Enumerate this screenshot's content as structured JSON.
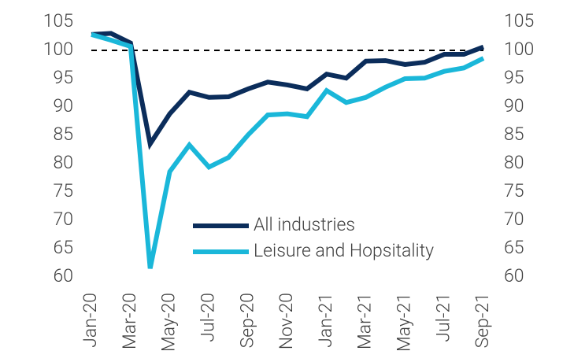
{
  "chart_data": {
    "type": "line",
    "categories": [
      "Jan-20",
      null,
      "Mar-20",
      null,
      "May-20",
      null,
      "Jul-20",
      null,
      "Sep-20",
      null,
      "Nov-20",
      null,
      "Jan-21",
      null,
      "Mar-21",
      null,
      "May-21",
      null,
      "Jul-21",
      null,
      "Sep-21"
    ],
    "series": [
      {
        "name": "All industries",
        "color": "#0b2d5b",
        "values": [
          102.8,
          103,
          101.3,
          83.5,
          88.8,
          92.6,
          91.7,
          91.8,
          93.2,
          94.4,
          93.9,
          93.2,
          95.8,
          95.1,
          98.1,
          98.2,
          97.5,
          97.9,
          99.3,
          99.3,
          100.6
        ]
      },
      {
        "name": "Leisure and Hopsitality",
        "color": "#1ab7d9",
        "values": [
          102.8,
          101.8,
          100.7,
          61.5,
          78.6,
          83.3,
          79.4,
          81.1,
          85.1,
          88.6,
          88.8,
          88.3,
          92.9,
          90.8,
          91.7,
          93.5,
          95,
          95.1,
          96.3,
          96.9,
          98.6
        ]
      }
    ],
    "ylim": [
      60,
      105
    ],
    "yticks": [
      60,
      65,
      70,
      75,
      80,
      85,
      90,
      95,
      100,
      105
    ],
    "y2lim": [
      60,
      105
    ],
    "y2ticks": [
      60,
      65,
      70,
      75,
      80,
      85,
      90,
      95,
      100,
      105
    ],
    "reference_line": 100,
    "legend": "lower right",
    "grid": false
  }
}
